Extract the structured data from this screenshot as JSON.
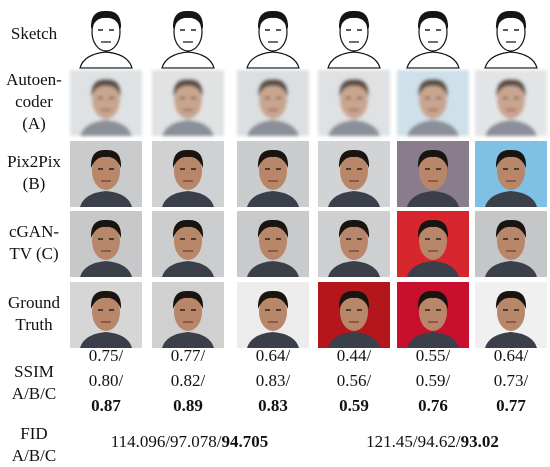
{
  "row_labels": [
    [
      "Sketch"
    ],
    [
      "Autoen-",
      "coder",
      "(A)"
    ],
    [
      "Pix2Pix",
      "(B)"
    ],
    [
      "cGAN-",
      "TV (C)"
    ],
    [
      "Ground",
      "Truth"
    ]
  ],
  "ssim_label": [
    "SSIM",
    "A/B/C"
  ],
  "ssim": [
    {
      "lines": [
        "0.75/",
        "0.80/"
      ],
      "best": "0.87"
    },
    {
      "lines": [
        "0.77/",
        "0.82/"
      ],
      "best": "0.89"
    },
    {
      "lines": [
        "0.64/",
        "0.83/"
      ],
      "best": "0.83"
    },
    {
      "lines": [
        "0.44/",
        "0.56/"
      ],
      "best": "0.59"
    },
    {
      "lines": [
        "0.55/",
        "0.59/"
      ],
      "best": "0.76"
    },
    {
      "lines": [
        "0.64/",
        "0.73/"
      ],
      "best": "0.77"
    }
  ],
  "fid_label": [
    "FID",
    "A/B/C"
  ],
  "fid": [
    {
      "text": "114.096/97.078/",
      "best": "94.705"
    },
    {
      "text": "121.45/94.62/",
      "best": "93.02"
    }
  ]
}
